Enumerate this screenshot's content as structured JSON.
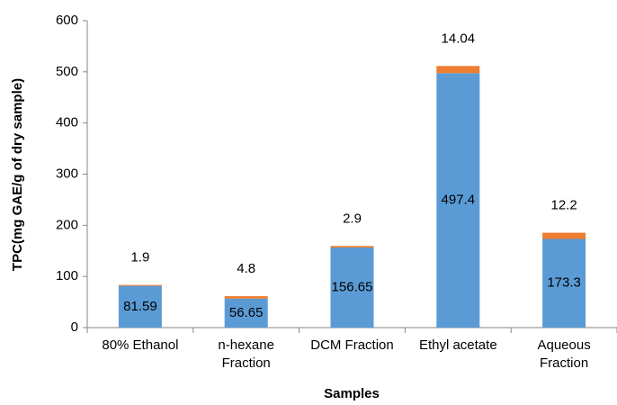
{
  "chart_data": {
    "type": "stacked_bar",
    "x_label": "Samples",
    "y_label": "TPC(mg GAE/g of dry sample)",
    "categories": [
      "80% Ethanol",
      "n-hexane\nFraction",
      "DCM Fraction",
      "Ethyl acetate",
      "Aqueous\nFraction"
    ],
    "series": [
      {
        "color": "#5b9bd5",
        "values": [
          81.59,
          56.65,
          156.65,
          497.4,
          173.3
        ],
        "label_position": "center"
      },
      {
        "color": "#ed7d31",
        "values": [
          1.9,
          4.8,
          2.9,
          14.04,
          12.2
        ],
        "label_position": "above"
      }
    ],
    "ylim": [
      0,
      600
    ],
    "yticks": [
      0,
      100,
      200,
      300,
      400,
      500,
      600
    ],
    "grid": false
  }
}
